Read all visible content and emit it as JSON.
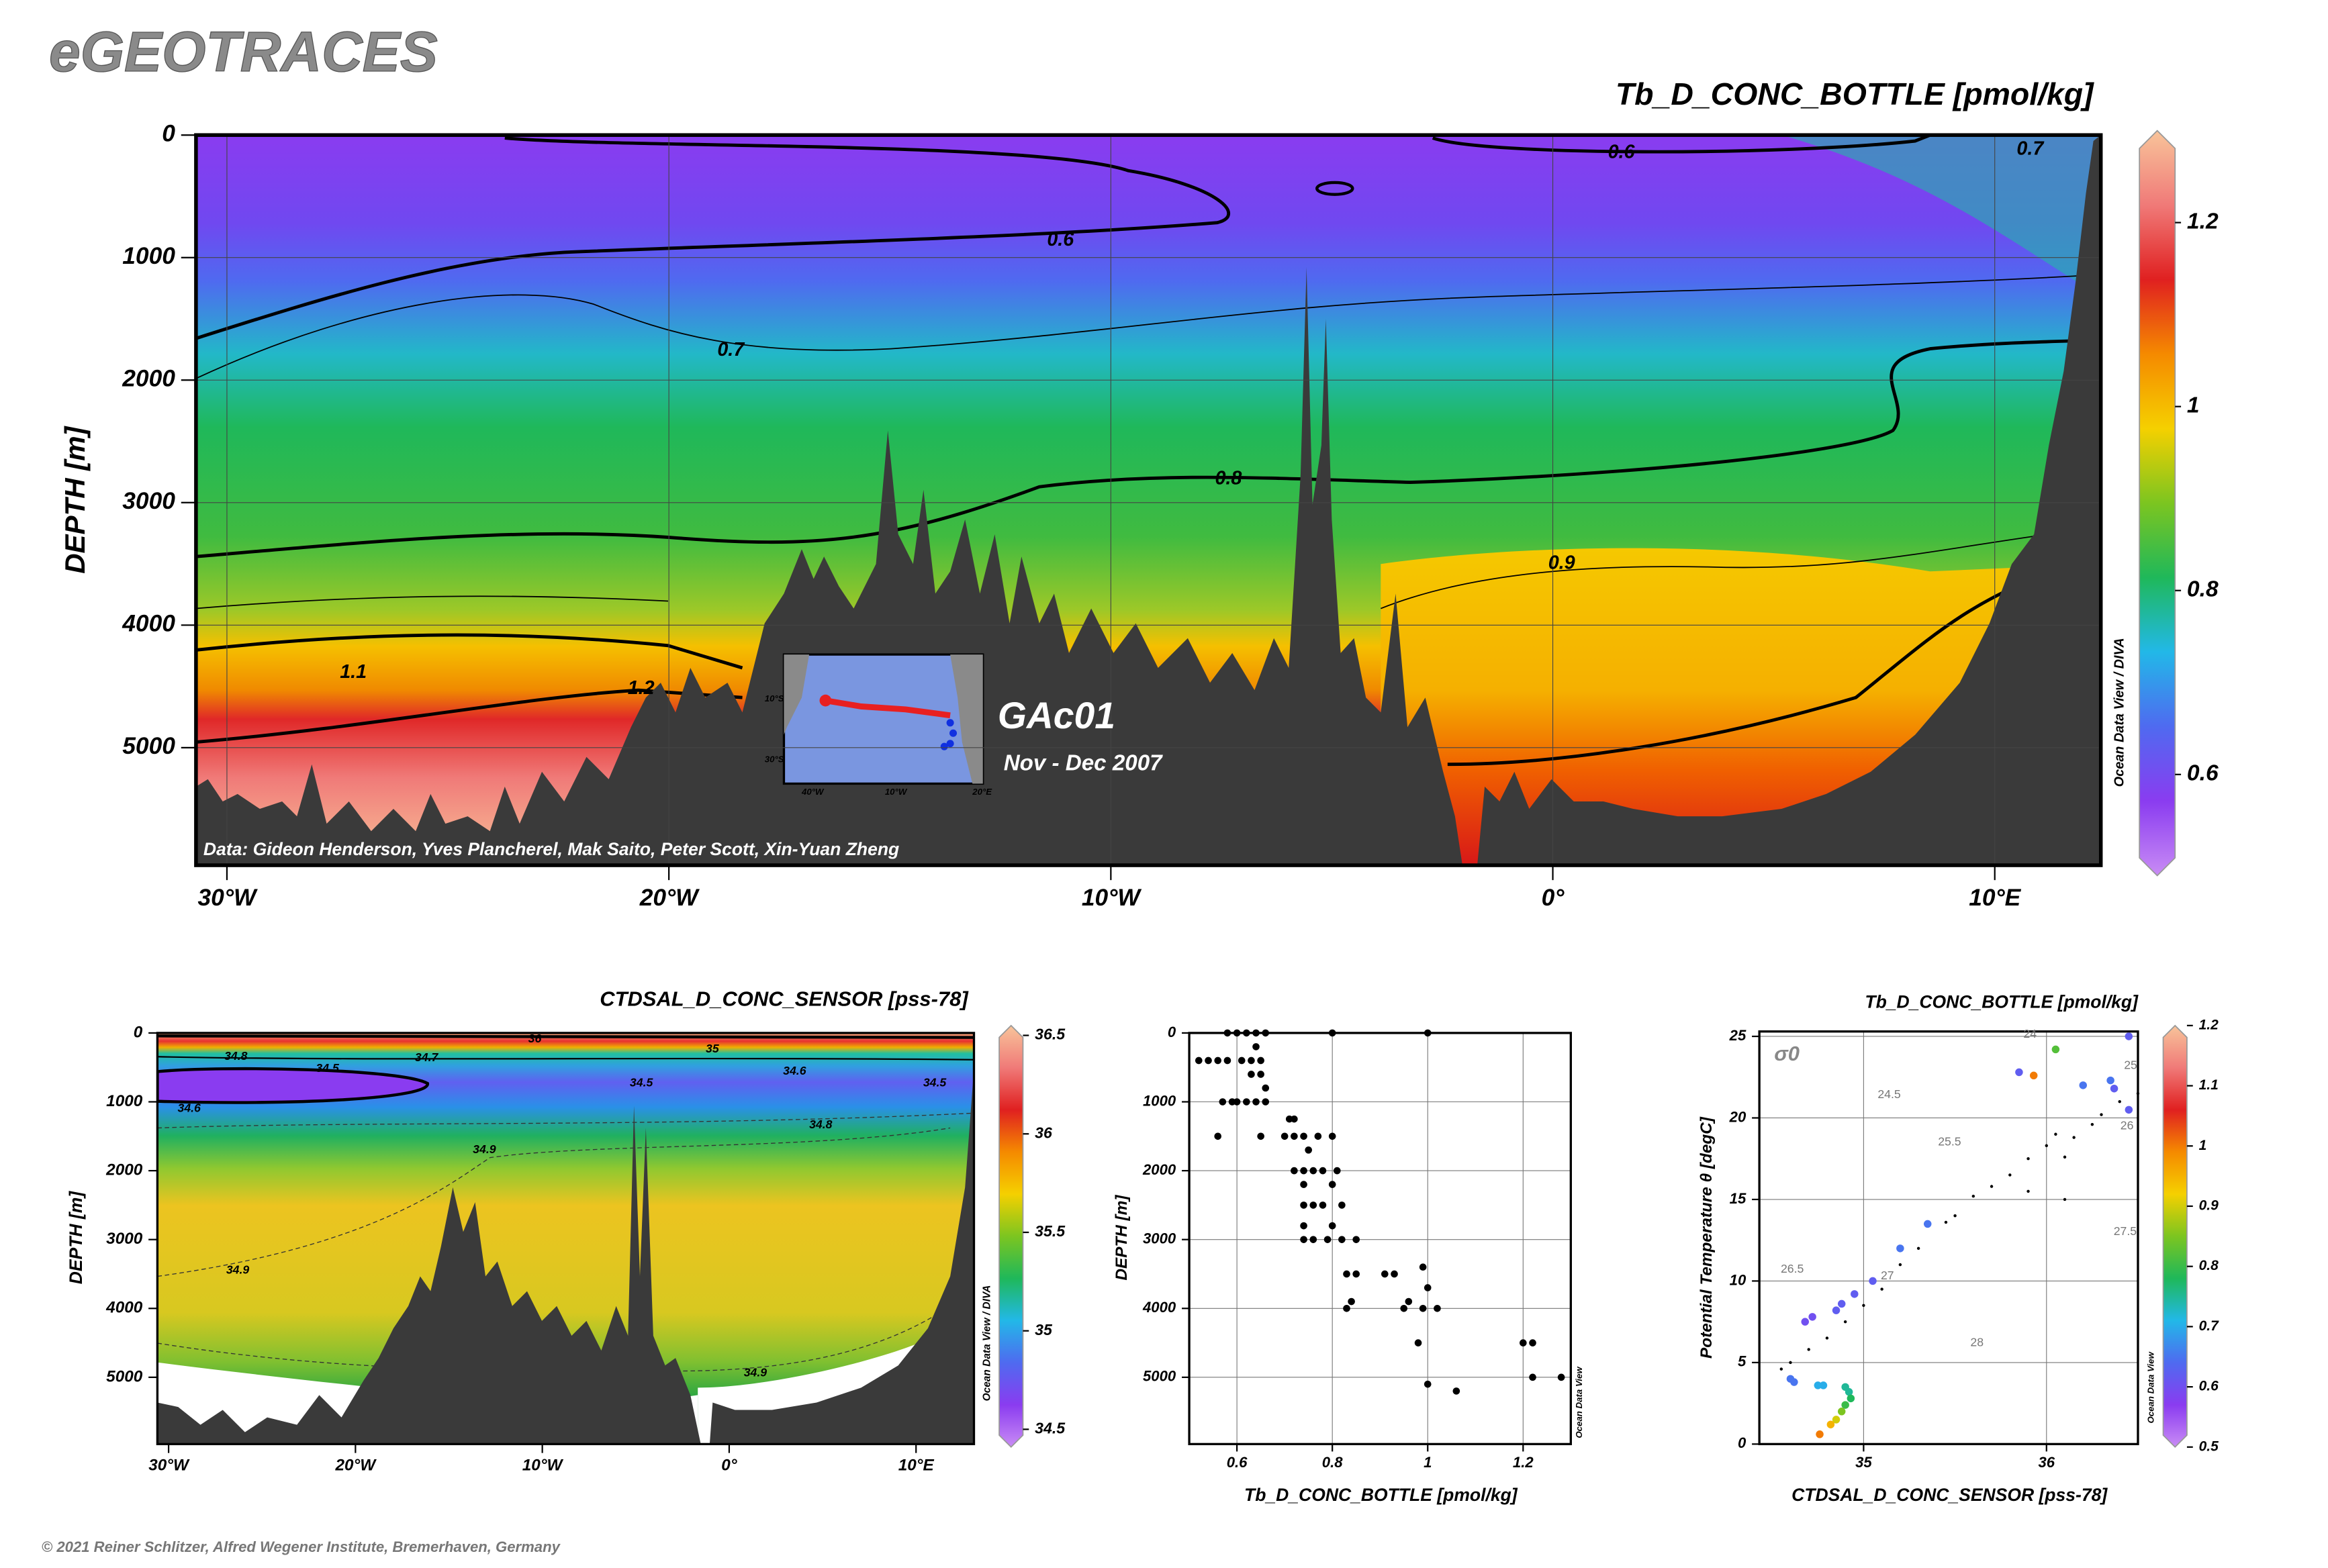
{
  "header": {
    "title": "eGEOTRACES"
  },
  "footer": {
    "text": "© 2021 Reiner Schlitzer, Alfred Wegener Institute, Bremerhaven, Germany"
  },
  "chart_data": [
    {
      "type": "section",
      "title": "Tb_D_CONC_BOTTLE [pmol/kg]",
      "ylabel": "DEPTH [m]",
      "xlim": [
        -30.7,
        12.4
      ],
      "xticks": [
        {
          "value": -30,
          "label": "30°W"
        },
        {
          "value": -20,
          "label": "20°W"
        },
        {
          "value": -10,
          "label": "10°W"
        },
        {
          "value": 0,
          "label": "0°"
        },
        {
          "value": 10,
          "label": "10°E"
        }
      ],
      "ylim": [
        0,
        5960
      ],
      "y_inverted": true,
      "yticks": [
        0,
        1000,
        2000,
        3000,
        4000,
        5000
      ],
      "grid": true,
      "clim": [
        0.49,
        1.3
      ],
      "cticks": [
        0.6,
        0.8,
        1,
        1.2
      ],
      "colormap": [
        "#c98cf5",
        "#8a3cf0",
        "#4f6af0",
        "#22b8e8",
        "#1fb85a",
        "#7cc520",
        "#f5d000",
        "#f58a00",
        "#e02020",
        "#f07a78",
        "#f8c49a"
      ],
      "watermark": "Ocean Data View / DIVA",
      "annotations": [
        "GAc01",
        "Nov - Dec 2007",
        "Data: Gideon Henderson, Yves Plancherel, Mak Saito, Peter Scott, Xin-Yuan Zheng"
      ],
      "inset": {
        "labels": [
          "10°S",
          "30°S",
          "40°W",
          "10°W",
          "20°E"
        ]
      },
      "contour_labels": [
        {
          "value": 0.6,
          "x": 1.55,
          "y": 145
        },
        {
          "value": 0.7,
          "x": 10.8,
          "y": 120
        },
        {
          "value": 0.6,
          "x": -11.14,
          "y": 860
        },
        {
          "value": 0.7,
          "x": -18.6,
          "y": 1760
        },
        {
          "value": 0.8,
          "x": -7.34,
          "y": 2810
        },
        {
          "value": 0.9,
          "x": 0.2,
          "y": 3500
        },
        {
          "value": 1.1,
          "x": -27.14,
          "y": 4390
        },
        {
          "value": 1.2,
          "x": -20.63,
          "y": 4520
        }
      ]
    },
    {
      "type": "section",
      "title": "CTDSAL_D_CONC_SENSOR [pss-78]",
      "ylabel": "DEPTH [m]",
      "xlim": [
        -30.6,
        13.1
      ],
      "xticks": [
        {
          "value": -30,
          "label": "30°W"
        },
        {
          "value": -20,
          "label": "20°W"
        },
        {
          "value": -10,
          "label": "10°W"
        },
        {
          "value": 0,
          "label": "0°"
        },
        {
          "value": 10,
          "label": "10°E"
        }
      ],
      "ylim": [
        0,
        5970
      ],
      "y_inverted": true,
      "yticks": [
        0,
        1000,
        2000,
        3000,
        4000,
        5000
      ],
      "grid": false,
      "clim": [
        34.41,
        36.55
      ],
      "cticks": [
        34.5,
        35,
        35.5,
        36,
        36.5
      ],
      "colormap": [
        "#c98cf5",
        "#8a3cf0",
        "#4f6af0",
        "#22b8e8",
        "#1fb85a",
        "#7cc520",
        "#f5d000",
        "#f58a00",
        "#e02020",
        "#f07a78",
        "#f8c49a"
      ],
      "watermark": "Ocean Data View / DIVA",
      "contour_labels": [
        {
          "value": 36,
          "x": -10.4,
          "y": 90
        },
        {
          "value": 35,
          "x": -0.9,
          "y": 240
        },
        {
          "value": 34.8,
          "x": -26.4,
          "y": 345
        },
        {
          "value": 34.7,
          "x": -16.2,
          "y": 365
        },
        {
          "value": 34.5,
          "x": -21.5,
          "y": 520
        },
        {
          "value": 34.6,
          "x": 3.5,
          "y": 560
        },
        {
          "value": 34.5,
          "x": -4.7,
          "y": 730
        },
        {
          "value": 34.5,
          "x": 11.0,
          "y": 730
        },
        {
          "value": 34.6,
          "x": -28.9,
          "y": 1100
        },
        {
          "value": 34.8,
          "x": 4.9,
          "y": 1340
        },
        {
          "value": 34.9,
          "x": -13.1,
          "y": 1700
        },
        {
          "value": 34.9,
          "x": -26.3,
          "y": 3450
        },
        {
          "value": 34.9,
          "x": 1.4,
          "y": 4940
        }
      ]
    },
    {
      "type": "scatter",
      "xlabel": "Tb_D_CONC_BOTTLE [pmol/kg]",
      "ylabel": "DEPTH [m]",
      "xlim": [
        0.5,
        1.3
      ],
      "xticks": [
        0.6,
        0.8,
        1,
        1.2
      ],
      "ylim": [
        0,
        5970
      ],
      "y_inverted": true,
      "yticks": [
        0,
        1000,
        2000,
        3000,
        4000,
        5000
      ],
      "grid": true,
      "color": "#000000",
      "watermark": "Ocean Data View",
      "x": [
        0.58,
        0.6,
        0.62,
        0.64,
        0.66,
        0.8,
        1.0,
        0.64,
        0.52,
        0.54,
        0.56,
        0.58,
        0.61,
        0.63,
        0.65,
        0.63,
        0.65,
        0.66,
        0.57,
        0.59,
        0.6,
        0.62,
        0.64,
        0.66,
        0.56,
        0.65,
        0.71,
        0.72,
        0.7,
        0.72,
        0.74,
        0.77,
        0.8,
        0.75,
        0.72,
        0.74,
        0.76,
        0.78,
        0.81,
        0.74,
        0.8,
        0.74,
        0.76,
        0.78,
        0.82,
        0.74,
        0.8,
        0.74,
        0.76,
        0.79,
        0.82,
        0.85,
        0.83,
        0.85,
        0.91,
        0.93,
        0.99,
        1.0,
        0.84,
        0.96,
        0.83,
        0.95,
        0.99,
        1.02,
        0.98,
        1.2,
        1.22,
        1.22,
        1.28,
        1.0,
        1.06
      ],
      "y": [
        0,
        0,
        0,
        0,
        0,
        0,
        0,
        200,
        400,
        400,
        400,
        400,
        400,
        400,
        400,
        600,
        600,
        800,
        1000,
        1000,
        1000,
        1000,
        1000,
        1000,
        1500,
        1500,
        1250,
        1250,
        1500,
        1500,
        1500,
        1500,
        1500,
        1700,
        2000,
        2000,
        2000,
        2000,
        2000,
        2200,
        2200,
        2500,
        2500,
        2500,
        2500,
        2800,
        2800,
        3000,
        3000,
        3000,
        3000,
        3000,
        3500,
        3500,
        3500,
        3500,
        3400,
        3700,
        3900,
        3900,
        4000,
        4000,
        4000,
        4000,
        4500,
        4500,
        4500,
        5000,
        5000,
        5100,
        5200
      ]
    },
    {
      "type": "ts",
      "title": "Tb_D_CONC_BOTTLE [pmol/kg]",
      "xlabel": "CTDSAL_D_CONC_SENSOR [pss-78]",
      "ylabel": "Potential Temperature θ [degC]",
      "xlim": [
        34.43,
        36.5
      ],
      "xticks": [
        35,
        36
      ],
      "ylim": [
        0,
        25.3
      ],
      "yticks": [
        0,
        5,
        10,
        15,
        20,
        25
      ],
      "grid": true,
      "clim": [
        0.5,
        1.2
      ],
      "cticks": [
        0.5,
        0.6,
        0.7,
        0.8,
        0.9,
        1,
        1.1,
        1.2
      ],
      "colormap": [
        "#c98cf5",
        "#8a3cf0",
        "#4f6af0",
        "#22b8e8",
        "#1fb85a",
        "#7cc520",
        "#f5d000",
        "#f58a00",
        "#e02020",
        "#f07a78",
        "#f8c49a"
      ],
      "watermark": "Ocean Data View",
      "sigma_label": "σ0",
      "isopycnal_labels": [
        {
          "value": 24,
          "x": 35.91,
          "y": 25.1
        },
        {
          "value": 24.5,
          "x": 35.14,
          "y": 21.4
        },
        {
          "value": 25,
          "x": 36.46,
          "y": 23.2
        },
        {
          "value": 25.5,
          "x": 35.47,
          "y": 18.5
        },
        {
          "value": 26,
          "x": 36.44,
          "y": 19.5
        },
        {
          "value": 26.5,
          "x": 34.61,
          "y": 10.7
        },
        {
          "value": 27,
          "x": 35.13,
          "y": 10.3
        },
        {
          "value": 27.5,
          "x": 36.43,
          "y": 13.0
        },
        {
          "value": 28,
          "x": 35.62,
          "y": 6.2
        }
      ],
      "ctd_x": [
        34.55,
        34.6,
        34.7,
        34.8,
        34.9,
        35,
        35.1,
        35.2,
        35.3,
        35.45,
        35.5,
        35.6,
        35.7,
        35.8,
        35.9,
        36,
        36.05,
        36.1,
        36.15,
        36.25,
        36.3,
        36.4,
        36.5,
        35.9,
        36.1
      ],
      "ctd_y": [
        4.6,
        5,
        5.8,
        6.5,
        7.5,
        8.5,
        9.5,
        11,
        12,
        13.6,
        14,
        15.2,
        15.8,
        16.5,
        17.5,
        18.3,
        19,
        17.6,
        18.8,
        19.6,
        20.2,
        21,
        21.5,
        15.5,
        15
      ],
      "x": [
        34.6,
        34.62,
        34.75,
        34.78,
        34.9,
        34.92,
        34.93,
        34.9,
        34.88,
        34.85,
        34.82,
        34.76,
        34.68,
        34.72,
        34.85,
        34.88,
        34.95,
        35.05,
        35.2,
        35.35,
        35.85,
        35.93,
        36.45,
        36.2,
        36.35,
        36.37,
        36.45,
        36.05
      ],
      "y": [
        4,
        3.8,
        3.6,
        3.6,
        3.5,
        3.2,
        2.8,
        2.4,
        2,
        1.5,
        1.2,
        0.6,
        7.5,
        7.8,
        8.2,
        8.6,
        9.2,
        10,
        12,
        13.5,
        22.8,
        22.6,
        25,
        22,
        22.3,
        21.8,
        20.5,
        24.2
      ],
      "z": [
        0.65,
        0.65,
        0.7,
        0.7,
        0.75,
        0.75,
        0.78,
        0.8,
        0.85,
        0.9,
        0.95,
        1.0,
        0.6,
        0.6,
        0.62,
        0.62,
        0.62,
        0.62,
        0.65,
        0.65,
        0.62,
        1.0,
        0.62,
        0.65,
        0.65,
        0.62,
        0.62,
        0.82
      ]
    }
  ]
}
